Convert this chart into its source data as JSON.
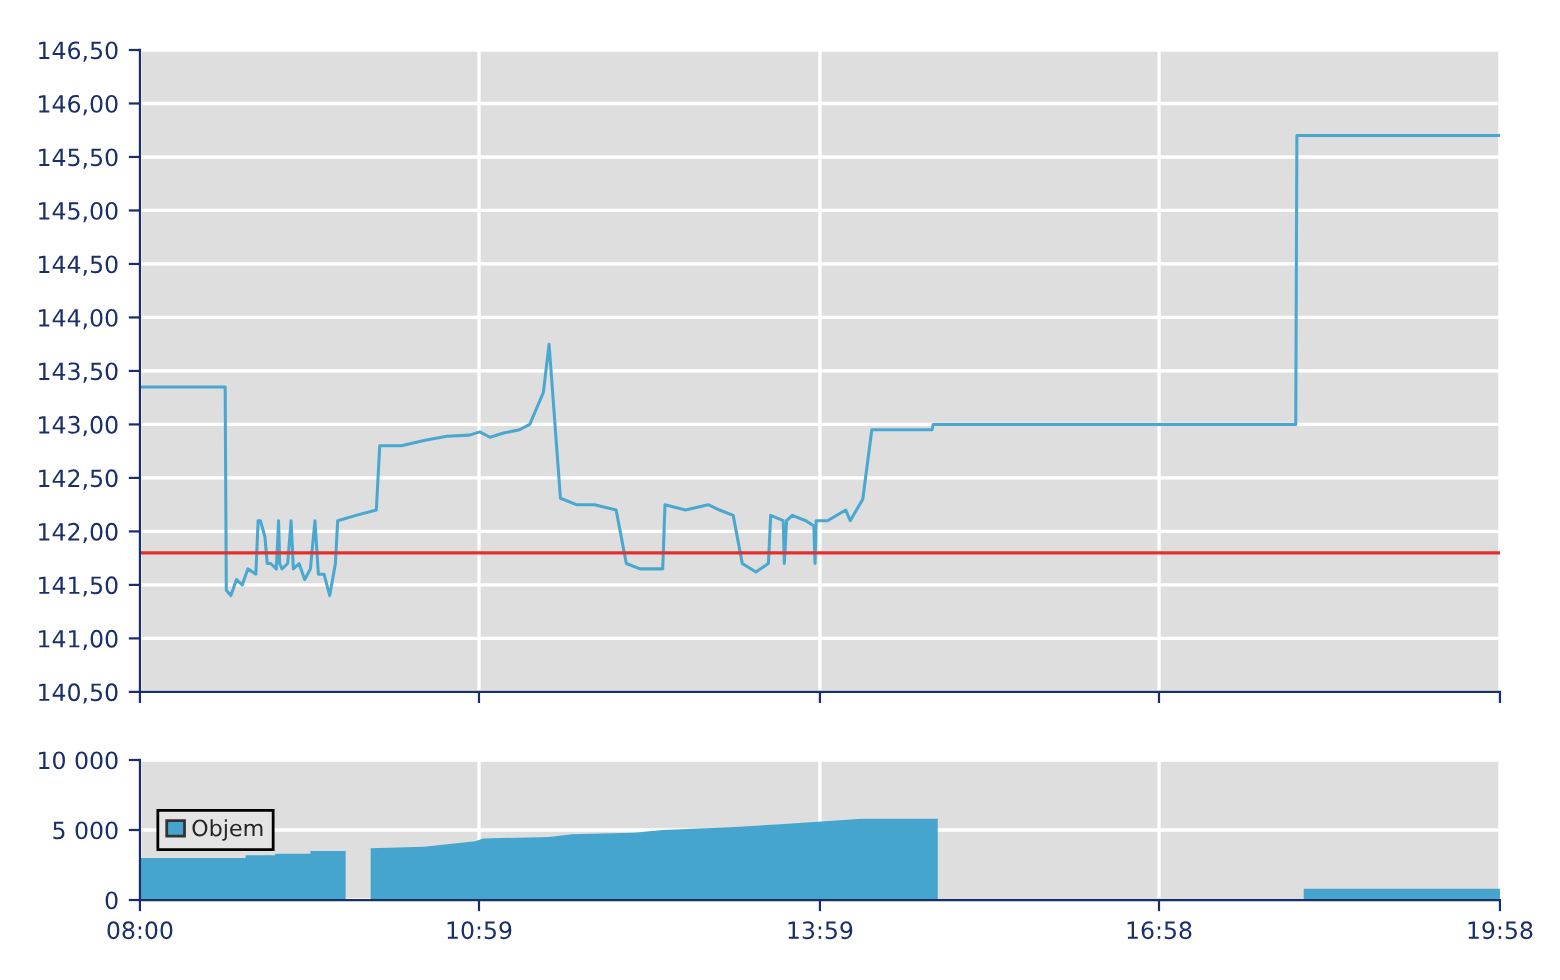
{
  "chart_data": [
    {
      "type": "line",
      "x": [
        8.0,
        8.75,
        8.76,
        8.8,
        8.85,
        8.9,
        8.95,
        9.02,
        9.04,
        9.06,
        9.1,
        9.12,
        9.15,
        9.2,
        9.22,
        9.23,
        9.25,
        9.3,
        9.33,
        9.35,
        9.4,
        9.45,
        9.5,
        9.54,
        9.57,
        9.62,
        9.67,
        9.72,
        9.74,
        9.9,
        10.08,
        10.11,
        10.3,
        10.5,
        10.7,
        10.9,
        10.99,
        11.08,
        11.2,
        11.34,
        11.43,
        11.55,
        11.6,
        11.7,
        11.84,
        12.0,
        12.19,
        12.28,
        12.4,
        12.6,
        12.62,
        12.8,
        13.0,
        13.1,
        13.22,
        13.3,
        13.42,
        13.53,
        13.55,
        13.66,
        13.67,
        13.69,
        13.74,
        13.86,
        13.93,
        13.94,
        13.95,
        14.05,
        14.21,
        14.25,
        14.36,
        14.44,
        14.97,
        14.98,
        18.17,
        18.18,
        19.9667
      ],
      "series": [
        {
          "color": "#4aa8d0",
          "values": [
            143.35,
            143.35,
            141.45,
            141.4,
            141.55,
            141.5,
            141.65,
            141.6,
            142.1,
            142.1,
            141.95,
            141.7,
            141.7,
            141.65,
            142.1,
            141.7,
            141.65,
            141.7,
            142.1,
            141.65,
            141.7,
            141.55,
            141.65,
            142.1,
            141.6,
            141.6,
            141.4,
            141.7,
            142.1,
            142.15,
            142.2,
            142.8,
            142.8,
            142.85,
            142.89,
            142.9,
            142.93,
            142.88,
            142.92,
            142.95,
            143.0,
            143.3,
            143.75,
            142.31,
            142.25,
            142.25,
            142.2,
            141.7,
            141.65,
            141.65,
            142.25,
            142.2,
            142.25,
            142.2,
            142.15,
            141.7,
            141.62,
            141.7,
            142.15,
            142.1,
            141.7,
            142.1,
            142.15,
            142.1,
            142.05,
            141.7,
            142.1,
            142.1,
            142.2,
            142.1,
            142.3,
            142.95,
            142.95,
            143.0,
            143.0,
            145.7,
            145.7
          ]
        }
      ],
      "xlim": [
        8.0,
        19.9667
      ],
      "xticks": [
        {
          "value": 8.0,
          "label": null
        },
        {
          "value": 10.9833,
          "label": null
        },
        {
          "value": 13.9833,
          "label": null
        },
        {
          "value": 16.9667,
          "label": null
        },
        {
          "value": 19.9667,
          "label": null
        }
      ],
      "ylim": [
        140.5,
        146.5
      ],
      "yticks": [
        {
          "value": 140.5,
          "label": "140,50"
        },
        {
          "value": 141.0,
          "label": "141,00"
        },
        {
          "value": 141.5,
          "label": "141,50"
        },
        {
          "value": 142.0,
          "label": "142,00"
        },
        {
          "value": 142.5,
          "label": "142,50"
        },
        {
          "value": 143.0,
          "label": "143,00"
        },
        {
          "value": 143.5,
          "label": "143,50"
        },
        {
          "value": 144.0,
          "label": "144,00"
        },
        {
          "value": 144.5,
          "label": "144,50"
        },
        {
          "value": 145.0,
          "label": "145,00"
        },
        {
          "value": 145.5,
          "label": "145,50"
        },
        {
          "value": 146.0,
          "label": "146,00"
        },
        {
          "value": 146.5,
          "label": "146,50"
        }
      ],
      "ref_lines": [
        {
          "axis": "y",
          "value": 141.8,
          "color": "#e03030"
        }
      ],
      "grid": true,
      "tick_labels": "y"
    },
    {
      "type": "area",
      "x": [
        8.0,
        8.93,
        8.93,
        9.19,
        9.19,
        9.5,
        9.5,
        9.81,
        9.81,
        10.03,
        10.03,
        10.5,
        10.95,
        11.02,
        11.6,
        11.8,
        12.35,
        12.6,
        13.2,
        13.6,
        14.0,
        14.35,
        15.02,
        15.02,
        18.24,
        18.24,
        19.9667
      ],
      "series": [
        {
          "name": "Objem",
          "color": "#45a5ce",
          "values": [
            3000,
            3000,
            3200,
            3200,
            3300,
            3300,
            3500,
            3500,
            0,
            0,
            3700,
            3800,
            4200,
            4400,
            4500,
            4700,
            4800,
            5000,
            5200,
            5400,
            5600,
            5800,
            5800,
            100,
            100,
            800,
            800
          ]
        }
      ],
      "xlim": [
        8.0,
        19.9667
      ],
      "xticks": [
        {
          "value": 8.0,
          "label": "08:00"
        },
        {
          "value": 10.9833,
          "label": "10:59"
        },
        {
          "value": 13.9833,
          "label": "13:59"
        },
        {
          "value": 16.9667,
          "label": "16:58"
        },
        {
          "value": 19.9667,
          "label": "19:58"
        }
      ],
      "ylim": [
        0,
        10000
      ],
      "yticks": [
        {
          "value": 0,
          "label": "0"
        },
        {
          "value": 5000,
          "label": "5 000"
        },
        {
          "value": 10000,
          "label": "10 000"
        }
      ],
      "grid": true,
      "legend": "top left"
    }
  ]
}
